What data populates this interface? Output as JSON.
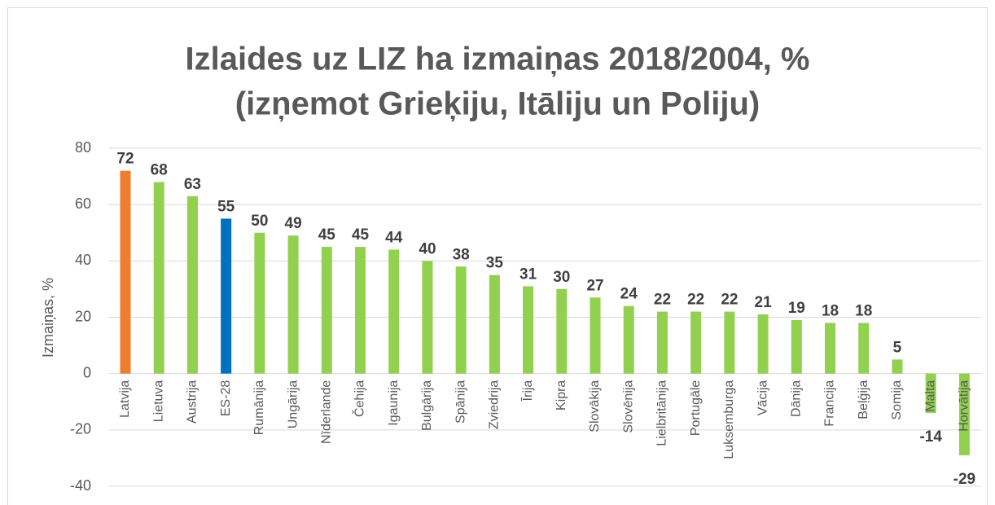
{
  "chart_data": {
    "type": "bar",
    "title": [
      "Izlaides uz LIZ ha izmaiņas 2018/2004, %",
      "(izņemot Grieķiju, Itāliju un Poliju)"
    ],
    "y_label": "Izmaiņas, %",
    "categories": [
      "Latvija",
      "Lietuva",
      "Austrija",
      "ES-28",
      "Rumānija",
      "Ungārija",
      "Nīderlande",
      "Čehija",
      "Igaunija",
      "Bulgārija",
      "Spānija",
      "Zviedrija",
      "Īrija",
      "Kipra",
      "Slovākija",
      "Slovēnija",
      "Lielbritānija",
      "Portugāle",
      "Luksemburga",
      "Vācija",
      "Dānija",
      "Francija",
      "Beļģija",
      "Somija",
      "Malta",
      "Horvātija"
    ],
    "values": [
      72,
      68,
      63,
      55,
      50,
      49,
      45,
      45,
      44,
      40,
      38,
      35,
      31,
      30,
      27,
      24,
      22,
      22,
      22,
      21,
      19,
      18,
      18,
      5,
      -14,
      -29
    ],
    "colors": [
      "#ed7d31",
      "#92d050",
      "#92d050",
      "#0070c0",
      "#92d050",
      "#92d050",
      "#92d050",
      "#92d050",
      "#92d050",
      "#92d050",
      "#92d050",
      "#92d050",
      "#92d050",
      "#92d050",
      "#92d050",
      "#92d050",
      "#92d050",
      "#92d050",
      "#92d050",
      "#92d050",
      "#92d050",
      "#92d050",
      "#92d050",
      "#92d050",
      "#92d050",
      "#92d050"
    ],
    "ylim": [
      -40,
      80
    ],
    "yticks": [
      -40,
      -20,
      0,
      20,
      40,
      60,
      80
    ],
    "grid": true
  }
}
